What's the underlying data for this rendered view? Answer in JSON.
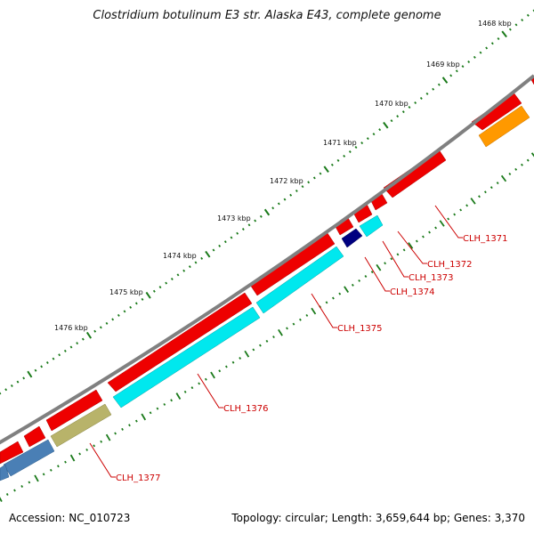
{
  "title": "Clostridium botulinum E3 str. Alaska E43, complete genome",
  "footer": {
    "accession": "Accession: NC_010723",
    "summary": "Topology: circular; Length: 3,659,644 bp; Genes: 3,370"
  },
  "ruler_labels": [
    "1468 kbp",
    "1469 kbp",
    "1470 kbp",
    "1471 kbp",
    "1472 kbp",
    "1473 kbp",
    "1474 kbp",
    "1475 kbp",
    "1476 kbp"
  ],
  "genes": [
    {
      "label": "CLH_1371"
    },
    {
      "label": "CLH_1372"
    },
    {
      "label": "CLH_1373"
    },
    {
      "label": "CLH_1374"
    },
    {
      "label": "CLH_1375"
    },
    {
      "label": "CLH_1376"
    },
    {
      "label": "CLH_1377"
    }
  ],
  "colors": {
    "backbone": "#808080",
    "forward_gene": "#ee0000",
    "cyan_gene": "#00e8ee",
    "navy_gene": "#000080",
    "olive_gene": "#b8b36a",
    "steel_gene": "#4a7fb5",
    "orange_gene": "#ff9900",
    "tick": "#1a7a1a",
    "label": "#cc0000"
  }
}
